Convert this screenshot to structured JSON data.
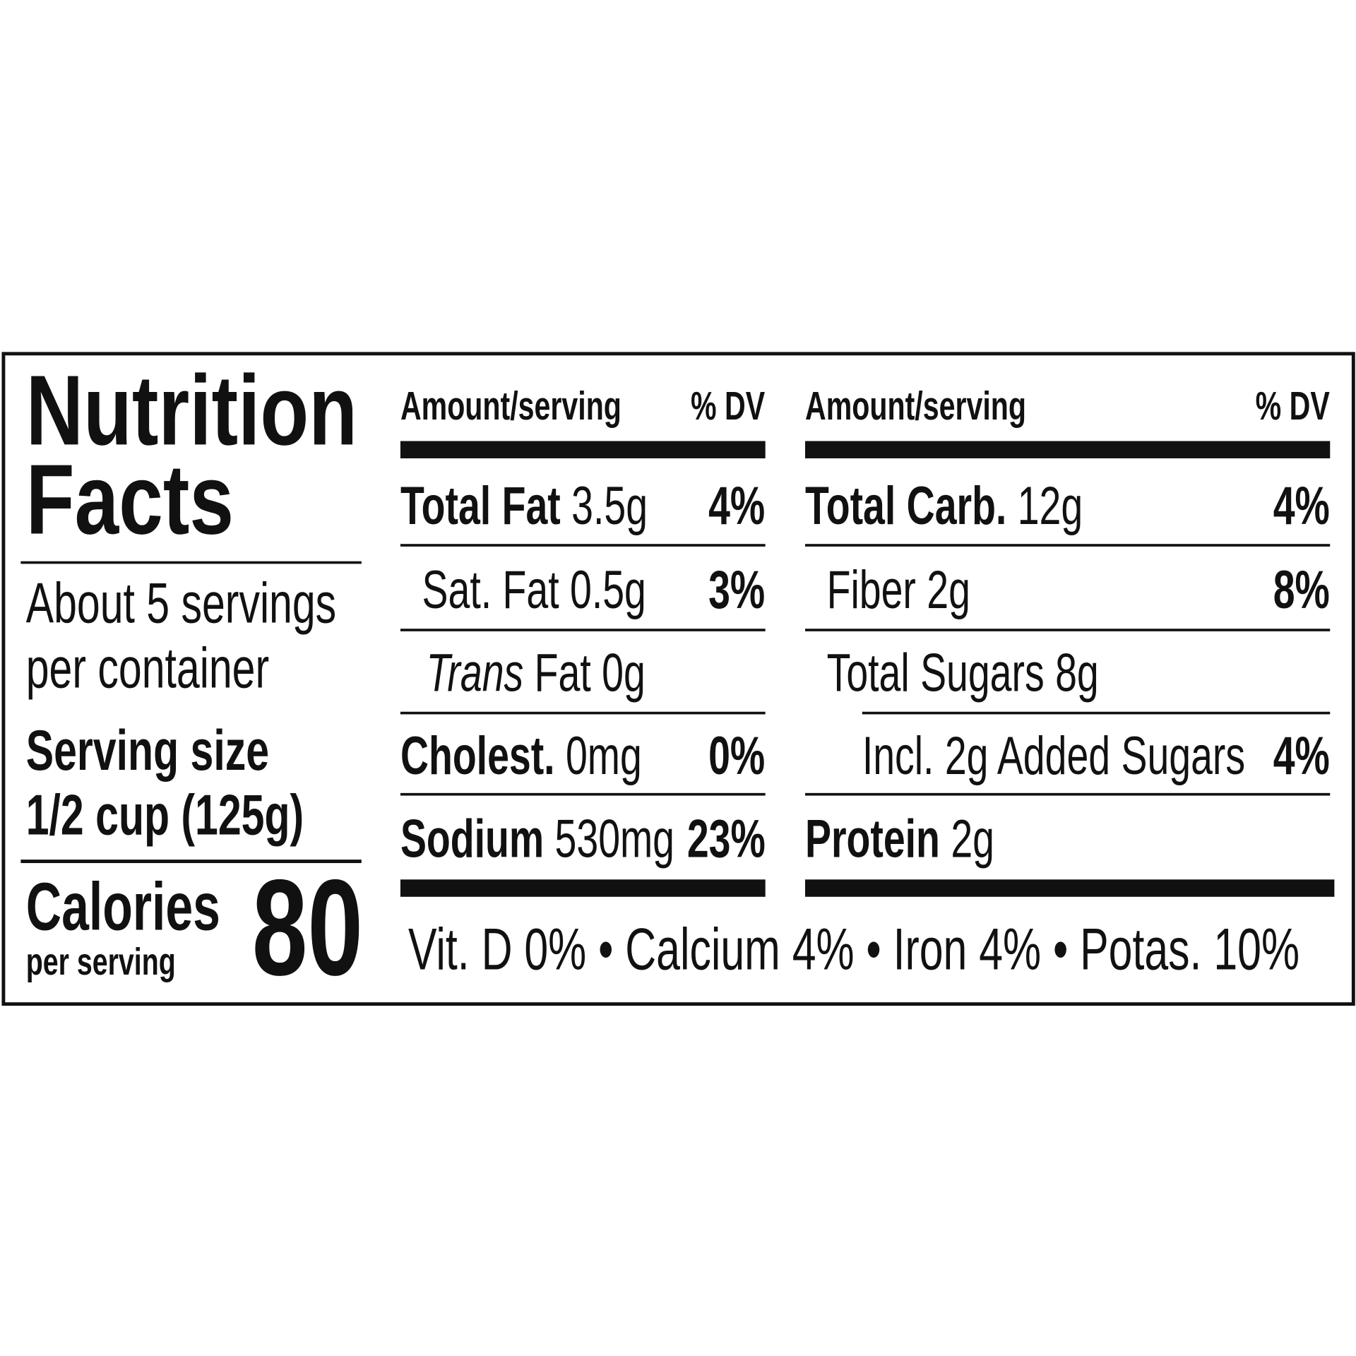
{
  "title_line1": "Nutrition",
  "title_line2": "Facts",
  "servings_line1": "About 5 servings",
  "servings_line2": "per container",
  "serving_size_label": "Serving size",
  "serving_size_value": "1/2 cup (125g)",
  "calories_label": "Calories",
  "calories_sub": "per serving",
  "calories_value": "80",
  "col_header": {
    "amount": "Amount/serving",
    "dv": "% DV"
  },
  "left_rows": [
    {
      "label": "Total Fat",
      "amount": "3.5g",
      "dv": "4%"
    },
    {
      "label": "Sat. Fat",
      "amount": "0.5g",
      "dv": "3%"
    },
    {
      "label_italic": "Trans",
      "label": "Fat",
      "amount": "0g",
      "dv": ""
    },
    {
      "label": "Cholest.",
      "amount": "0mg",
      "dv": "0%"
    },
    {
      "label": "Sodium",
      "amount": "530mg",
      "dv": "23%"
    }
  ],
  "right_rows": [
    {
      "label": "Total Carb.",
      "amount": "12g",
      "dv": "4%"
    },
    {
      "label": "Fiber",
      "amount": "2g",
      "dv": "8%"
    },
    {
      "label": "Total Sugars",
      "amount": "8g",
      "dv": ""
    },
    {
      "label": "Incl. 2g Added Sugars",
      "amount": "",
      "dv": "4%"
    },
    {
      "label": "Protein",
      "amount": "2g",
      "dv": ""
    }
  ],
  "vitamins": "Vit. D 0% • Calcium 4% • Iron 4% • Potas. 10%"
}
